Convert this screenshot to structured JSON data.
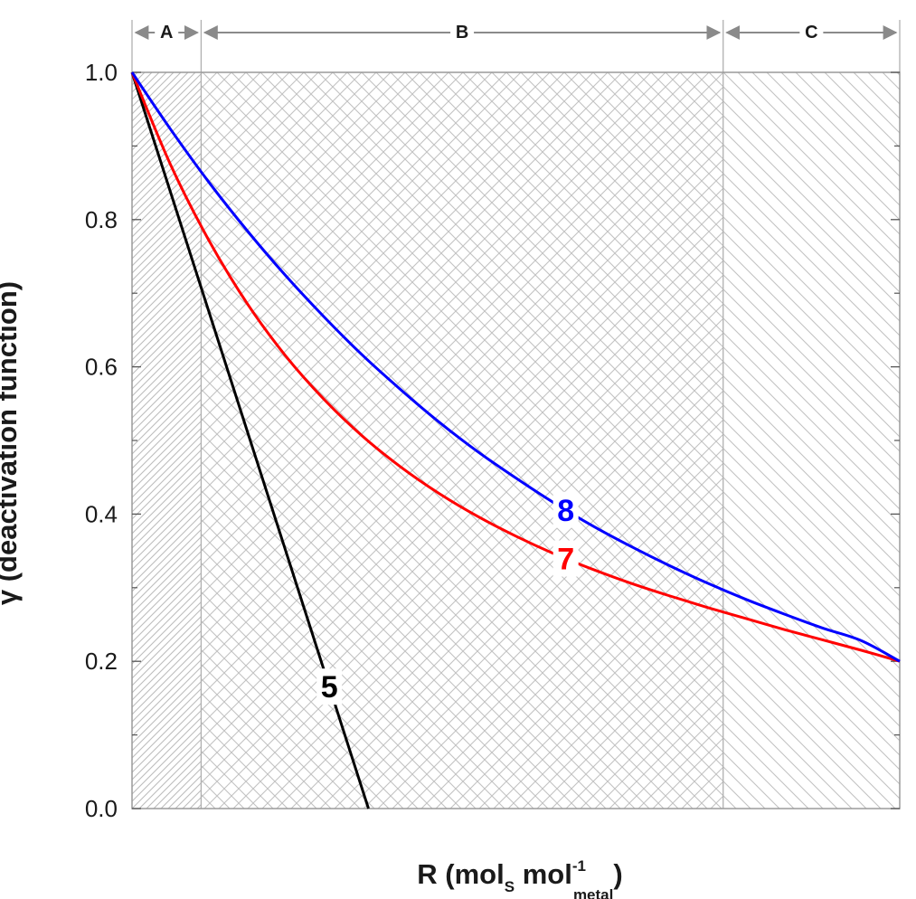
{
  "chart_data": {
    "type": "line",
    "xlabel": {
      "main": "R (mol",
      "sub1": "S",
      "mid": " mol",
      "sup": "-1",
      "sub2": "metal",
      "end": ")"
    },
    "ylabel": "γ (deactivation function)",
    "ylim": [
      0,
      1
    ],
    "yticks": [
      "0.0",
      "0.2",
      "0.4",
      "0.6",
      "0.8",
      "1.0"
    ],
    "xticks": [],
    "x_range": [
      0,
      1
    ],
    "regions": [
      {
        "label": "A",
        "x_start": 0.0,
        "x_end": 0.09,
        "hatch": "dense-diagonal"
      },
      {
        "label": "B",
        "x_start": 0.09,
        "x_end": 0.77,
        "hatch": "crosshatch"
      },
      {
        "label": "C",
        "x_start": 0.77,
        "x_end": 1.0,
        "hatch": "diagonal"
      }
    ],
    "series": [
      {
        "name": "5",
        "color": "#000000",
        "x": [
          0,
          0.308
        ],
        "y": [
          1.0,
          0.0
        ],
        "label_at_x": 0.257
      },
      {
        "name": "7",
        "color": "#ff0000",
        "x": [
          0,
          0.05,
          0.1,
          0.15,
          0.2,
          0.25,
          0.3,
          0.35,
          0.4,
          0.45,
          0.5,
          0.55,
          0.6,
          0.65,
          0.7,
          0.75,
          0.8,
          0.85,
          0.9,
          0.95,
          1.0
        ],
        "y": [
          1.0,
          0.875,
          0.772,
          0.686,
          0.615,
          0.556,
          0.506,
          0.464,
          0.428,
          0.397,
          0.37,
          0.346,
          0.325,
          0.306,
          0.289,
          0.273,
          0.258,
          0.243,
          0.229,
          0.215,
          0.2
        ],
        "label_at_x": 0.565
      },
      {
        "name": "8",
        "color": "#0000ff",
        "x": [
          0,
          0.05,
          0.1,
          0.15,
          0.2,
          0.25,
          0.3,
          0.35,
          0.4,
          0.45,
          0.5,
          0.55,
          0.6,
          0.65,
          0.7,
          0.75,
          0.8,
          0.85,
          0.9,
          0.95,
          1.0
        ],
        "y": [
          1.0,
          0.923,
          0.851,
          0.785,
          0.724,
          0.668,
          0.616,
          0.569,
          0.525,
          0.485,
          0.449,
          0.415,
          0.384,
          0.356,
          0.33,
          0.306,
          0.284,
          0.264,
          0.245,
          0.228,
          0.2
        ],
        "label_at_x": 0.565
      }
    ]
  }
}
